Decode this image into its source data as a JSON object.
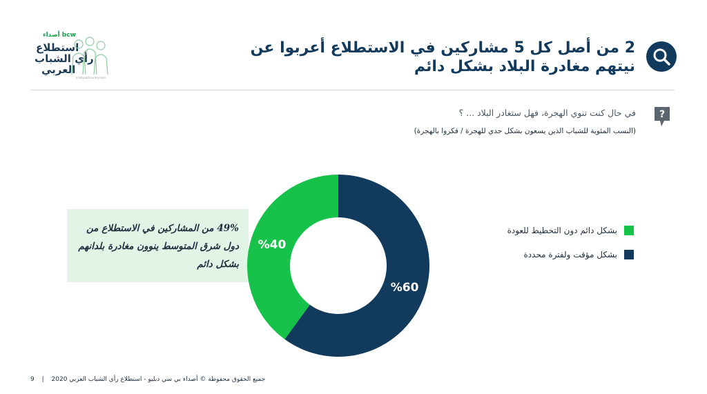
{
  "logo": {
    "brand": "أصداء bcw",
    "line1": "استطلاع",
    "line2": "رأي الشباب",
    "line3": "العربي",
    "url": "arabyouthsurvey.com"
  },
  "header": {
    "title": "2 من أصل كل 5 مشاركين في الاستطلاع أعربوا عن نيتهم مغادرة البلاد  بشكل دائم",
    "icon": "search-icon"
  },
  "question": {
    "text": "في حال كنت تنوي الهجرة، فهل ستغادر البلاد ... ؟",
    "note": "(النسب المئوية للشباب الذين يسعون بشكل جدي للهجرة / فكروا بالهجرة)",
    "icon": "question-bubble-icon"
  },
  "callout": {
    "text": "49% من المشاركين في الاستطلاع من دول شرق المتوسط ينوون مغادرة بلدانهم بشكل دائم"
  },
  "chart_data": {
    "type": "pie",
    "donut": true,
    "categories": [
      "بشكل دائم دون التخطيط للعودة",
      "بشكل مؤقت ولفترة محددة"
    ],
    "values": [
      40,
      60
    ],
    "value_labels": [
      "%40",
      "%60"
    ],
    "colors": [
      "#16c24a",
      "#123a5c"
    ],
    "legend_position": "right"
  },
  "footer": {
    "page": "9",
    "copyright": "جميع الحقوق محفوظة © أصداء بي سي دبليو - استطلاع رأي الشباب العربي 2020"
  }
}
